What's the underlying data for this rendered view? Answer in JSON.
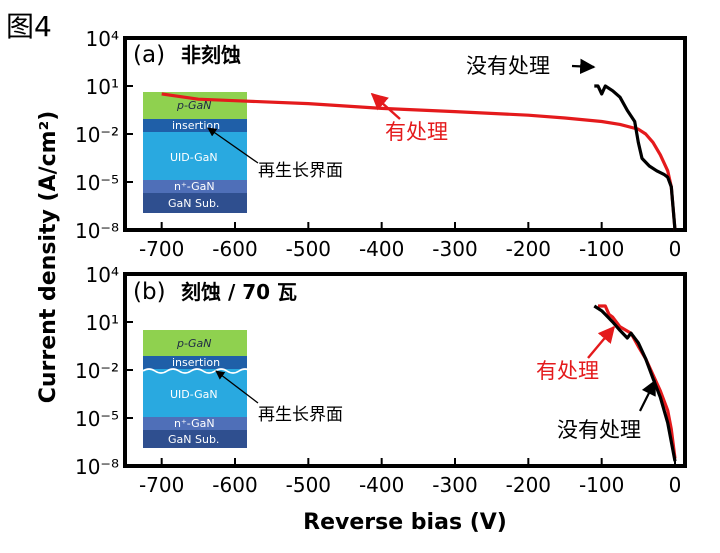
{
  "figure_label": "图4",
  "colors": {
    "with_treatment": "#e41a1c",
    "without_treatment": "#000000"
  },
  "chart_data": [
    {
      "type": "line",
      "panel_label": "(a)",
      "title": "非刻蚀",
      "xlabel": "",
      "ylabel": "Current density (A/cm²)",
      "xlim": [
        -750,
        0
      ],
      "ylim_exponent": [
        -8,
        4
      ],
      "y_scale": "log",
      "x_ticks": [
        "-700",
        "-600",
        "-500",
        "-400",
        "-300",
        "-200",
        "-100",
        "0"
      ],
      "y_ticks": [
        "10⁴",
        "10¹",
        "10⁻²",
        "10⁻⁵",
        "10⁻⁸"
      ],
      "y_tick_exponents": [
        4,
        1,
        -2,
        -5,
        -8
      ],
      "series": [
        {
          "name": "有处理",
          "color": "#e41a1c",
          "points": [
            [
              -700,
              3.2
            ],
            [
              -650,
              1.5
            ],
            [
              -600,
              1.2
            ],
            [
              -500,
              0.8
            ],
            [
              -400,
              0.4
            ],
            [
              -300,
              0.25
            ],
            [
              -200,
              0.15
            ],
            [
              -150,
              0.1
            ],
            [
              -100,
              0.06
            ],
            [
              -75,
              0.04
            ],
            [
              -50,
              0.02
            ],
            [
              -40,
              0.01
            ],
            [
              -30,
              0.003
            ],
            [
              -20,
              0.0005
            ],
            [
              -10,
              5e-05
            ],
            [
              -5,
              5e-06
            ],
            [
              0,
              1e-08
            ]
          ]
        },
        {
          "name": "没有处理",
          "color": "#000000",
          "points": [
            [
              -110,
              10.0
            ],
            [
              -105,
              10.0
            ],
            [
              -100,
              3.2
            ],
            [
              -95,
              10.0
            ],
            [
              -85,
              5.0
            ],
            [
              -75,
              2.0
            ],
            [
              -65,
              0.3
            ],
            [
              -55,
              0.06
            ],
            [
              -50,
              0.003
            ],
            [
              -45,
              0.0003
            ],
            [
              -35,
              0.0001
            ],
            [
              -25,
              5e-05
            ],
            [
              -15,
              3e-05
            ],
            [
              -10,
              2e-05
            ],
            [
              -5,
              5e-06
            ],
            [
              0,
              1e-08
            ]
          ]
        }
      ],
      "annotations": {
        "with_treatment": "有处理",
        "without_treatment": "没有处理",
        "interface": "再生长界面"
      },
      "inset_layers": [
        "p-GaN",
        "insertion",
        "UID-GaN",
        "n⁺-GaN",
        "GaN Sub."
      ]
    },
    {
      "type": "line",
      "panel_label": "(b)",
      "title": "刻蚀 / 70 瓦",
      "xlabel": "Reverse bias (V)",
      "ylabel": "",
      "xlim": [
        -750,
        0
      ],
      "ylim_exponent": [
        -8,
        4
      ],
      "y_scale": "log",
      "x_ticks": [
        "-700",
        "-600",
        "-500",
        "-400",
        "-300",
        "-200",
        "-100",
        "0"
      ],
      "y_ticks": [
        "10⁴",
        "10¹",
        "10⁻²",
        "10⁻⁵",
        "10⁻⁸"
      ],
      "y_tick_exponents": [
        4,
        1,
        -2,
        -5,
        -8
      ],
      "series": [
        {
          "name": "有处理",
          "color": "#e41a1c",
          "points": [
            [
              -105,
              100
            ],
            [
              -95,
              100
            ],
            [
              -90,
              30
            ],
            [
              -85,
              20
            ],
            [
              -75,
              5
            ],
            [
              -60,
              2
            ],
            [
              -50,
              0.3
            ],
            [
              -40,
              0.05
            ],
            [
              -30,
              0.005
            ],
            [
              -20,
              0.0005
            ],
            [
              -10,
              3e-05
            ],
            [
              -5,
              2e-06
            ],
            [
              0,
              3e-08
            ]
          ]
        },
        {
          "name": "没有处理",
          "color": "#000000",
          "points": [
            [
              -110,
              100
            ],
            [
              -100,
              50
            ],
            [
              -95,
              30
            ],
            [
              -85,
              10
            ],
            [
              -75,
              3
            ],
            [
              -65,
              1
            ],
            [
              -60,
              2
            ],
            [
              -50,
              0.5
            ],
            [
              -40,
              0.05
            ],
            [
              -30,
              0.003
            ],
            [
              -20,
              0.0002
            ],
            [
              -10,
              5e-06
            ],
            [
              0,
              2e-08
            ]
          ]
        }
      ],
      "annotations": {
        "with_treatment": "有处理",
        "without_treatment": "没有处理",
        "interface": "再生长界面"
      },
      "inset_layers": [
        "p-GaN",
        "insertion",
        "UID-GaN",
        "n⁺-GaN",
        "GaN Sub."
      ]
    }
  ]
}
